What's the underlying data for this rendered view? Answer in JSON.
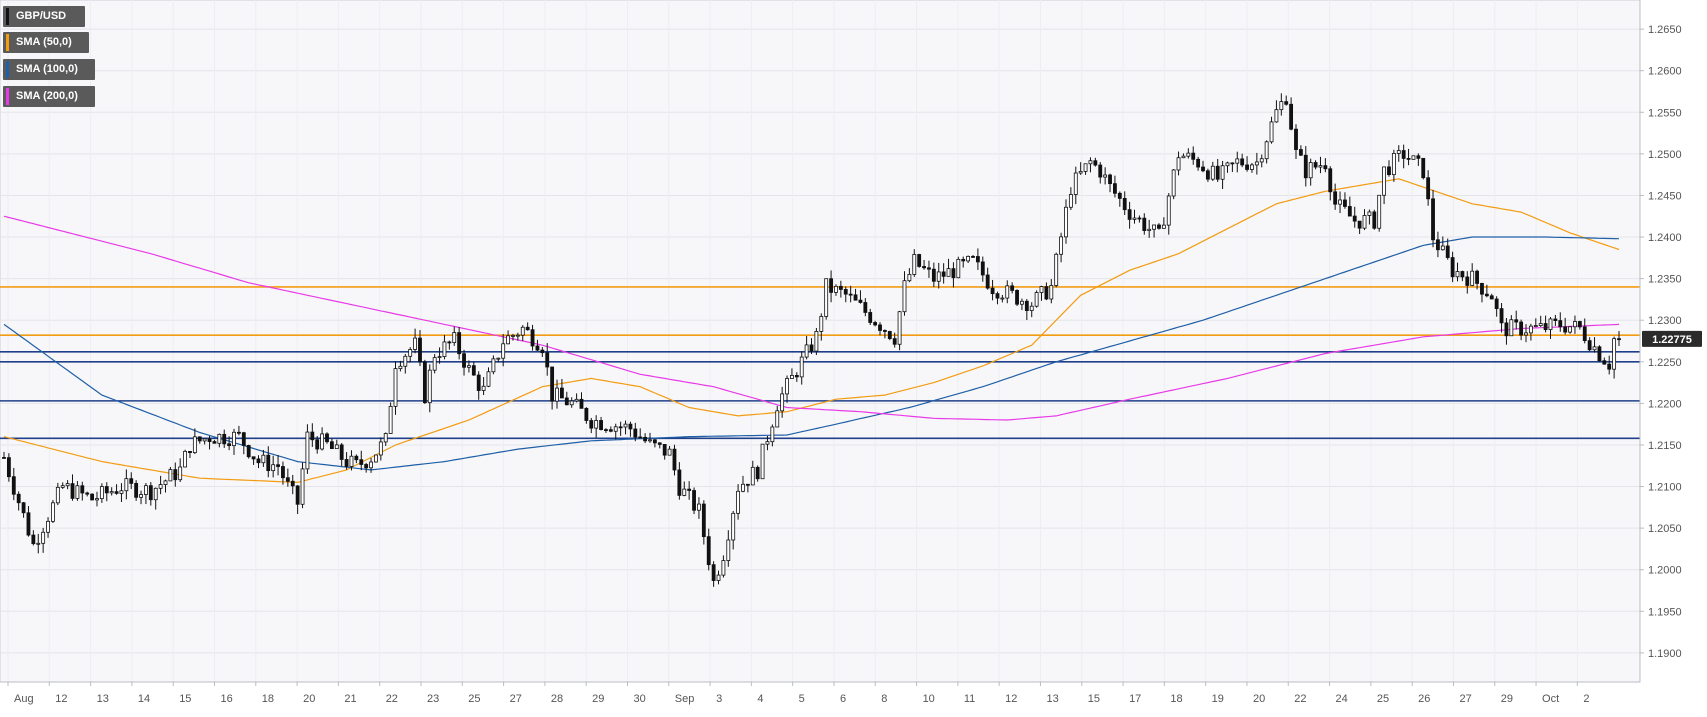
{
  "chart_data": {
    "type": "candlestick",
    "title": "GBP/USD",
    "y_range": [
      1.1865,
      1.2685
    ],
    "y_ticks": [
      "1.1900",
      "1.1950",
      "1.2000",
      "1.2050",
      "1.2100",
      "1.2150",
      "1.2200",
      "1.2250",
      "1.2300",
      "1.2350",
      "1.2400",
      "1.2450",
      "1.2500",
      "1.2550",
      "1.2600",
      "1.2650"
    ],
    "x_tick_labels": [
      "Aug",
      "12",
      "13",
      "14",
      "15",
      "16",
      "18",
      "20",
      "21",
      "22",
      "23",
      "25",
      "27",
      "28",
      "29",
      "30",
      "Sep",
      "3",
      "4",
      "5",
      "6",
      "8",
      "10",
      "11",
      "12",
      "13",
      "15",
      "17",
      "18",
      "19",
      "20",
      "22",
      "24",
      "25",
      "26",
      "27",
      "29",
      "Oct",
      "2"
    ],
    "grid": true,
    "last_price_label": "1.22775",
    "legend": [
      {
        "label": "GBP/USD",
        "color": "#111111"
      },
      {
        "label": "SMA (50,0)",
        "color": "#f39c12"
      },
      {
        "label": "SMA (100,0)",
        "color": "#1f5fa8"
      },
      {
        "label": "SMA (200,0)",
        "color": "#e83be8"
      }
    ],
    "horizontal_levels": [
      {
        "value": 1.234,
        "color": "#f39c12"
      },
      {
        "value": 1.2282,
        "color": "#f39c12"
      },
      {
        "value": 1.2262,
        "color": "#1f3f8a"
      },
      {
        "value": 1.225,
        "color": "#1f3f8a"
      },
      {
        "value": 1.2203,
        "color": "#1f3f8a"
      },
      {
        "value": 1.2158,
        "color": "#1f3f8a"
      }
    ],
    "price_path": [
      [
        0,
        1.2135
      ],
      [
        6,
        1.203
      ],
      [
        12,
        1.21
      ],
      [
        18,
        1.2085
      ],
      [
        24,
        1.21
      ],
      [
        30,
        1.2095
      ],
      [
        36,
        1.212
      ],
      [
        38,
        1.215
      ],
      [
        42,
        1.216
      ],
      [
        48,
        1.216
      ],
      [
        52,
        1.213
      ],
      [
        56,
        1.2125
      ],
      [
        58,
        1.21
      ],
      [
        60,
        1.208
      ],
      [
        62,
        1.216
      ],
      [
        66,
        1.215
      ],
      [
        70,
        1.213
      ],
      [
        72,
        1.2125
      ],
      [
        75,
        1.2135
      ],
      [
        78,
        1.2155
      ],
      [
        80,
        1.225
      ],
      [
        84,
        1.227
      ],
      [
        86,
        1.221
      ],
      [
        88,
        1.226
      ],
      [
        92,
        1.2275
      ],
      [
        95,
        1.224
      ],
      [
        98,
        1.2215
      ],
      [
        102,
        1.2275
      ],
      [
        106,
        1.229
      ],
      [
        110,
        1.227
      ],
      [
        112,
        1.221
      ],
      [
        116,
        1.22
      ],
      [
        120,
        1.218
      ],
      [
        124,
        1.2175
      ],
      [
        128,
        1.217
      ],
      [
        132,
        1.215
      ],
      [
        136,
        1.214
      ],
      [
        138,
        1.21
      ],
      [
        142,
        1.207
      ],
      [
        145,
        1.1985
      ],
      [
        147,
        1.202
      ],
      [
        150,
        1.21
      ],
      [
        154,
        1.212
      ],
      [
        158,
        1.22
      ],
      [
        162,
        1.224
      ],
      [
        166,
        1.228
      ],
      [
        168,
        1.234
      ],
      [
        172,
        1.233
      ],
      [
        176,
        1.231
      ],
      [
        180,
        1.229
      ],
      [
        182,
        1.228
      ],
      [
        184,
        1.234
      ],
      [
        186,
        1.237
      ],
      [
        190,
        1.235
      ],
      [
        194,
        1.236
      ],
      [
        198,
        1.237
      ],
      [
        202,
        1.234
      ],
      [
        206,
        1.233
      ],
      [
        210,
        1.232
      ],
      [
        214,
        1.234
      ],
      [
        216,
        1.24
      ],
      [
        218,
        1.246
      ],
      [
        222,
        1.249
      ],
      [
        224,
        1.248
      ],
      [
        226,
        1.246
      ],
      [
        230,
        1.243
      ],
      [
        234,
        1.241
      ],
      [
        236,
        1.24
      ],
      [
        238,
        1.245
      ],
      [
        240,
        1.25
      ],
      [
        244,
        1.249
      ],
      [
        248,
        1.247
      ],
      [
        252,
        1.249
      ],
      [
        256,
        1.249
      ],
      [
        258,
        1.252
      ],
      [
        260,
        1.255
      ],
      [
        262,
        1.257
      ],
      [
        264,
        1.25
      ],
      [
        266,
        1.248
      ],
      [
        270,
        1.249
      ],
      [
        272,
        1.244
      ],
      [
        276,
        1.242
      ],
      [
        280,
        1.242
      ],
      [
        282,
        1.248
      ],
      [
        286,
        1.25
      ],
      [
        290,
        1.248
      ],
      [
        292,
        1.24
      ],
      [
        296,
        1.236
      ],
      [
        300,
        1.235
      ],
      [
        302,
        1.234
      ],
      [
        304,
        1.233
      ],
      [
        306,
        1.229
      ],
      [
        310,
        1.229
      ],
      [
        314,
        1.229
      ],
      [
        318,
        1.2295
      ],
      [
        322,
        1.229
      ],
      [
        326,
        1.226
      ],
      [
        328,
        1.2248
      ],
      [
        329,
        1.22775
      ]
    ],
    "sma_50": [
      [
        0,
        1.216
      ],
      [
        20,
        1.213
      ],
      [
        40,
        1.211
      ],
      [
        60,
        1.2105
      ],
      [
        70,
        1.212
      ],
      [
        80,
        1.215
      ],
      [
        95,
        1.218
      ],
      [
        110,
        1.222
      ],
      [
        120,
        1.223
      ],
      [
        130,
        1.222
      ],
      [
        140,
        1.2195
      ],
      [
        150,
        1.2185
      ],
      [
        160,
        1.219
      ],
      [
        170,
        1.2205
      ],
      [
        180,
        1.221
      ],
      [
        190,
        1.2225
      ],
      [
        200,
        1.2245
      ],
      [
        210,
        1.227
      ],
      [
        220,
        1.233
      ],
      [
        230,
        1.236
      ],
      [
        240,
        1.238
      ],
      [
        250,
        1.241
      ],
      [
        260,
        1.244
      ],
      [
        270,
        1.2455
      ],
      [
        280,
        1.2465
      ],
      [
        285,
        1.247
      ],
      [
        290,
        1.246
      ],
      [
        300,
        1.244
      ],
      [
        310,
        1.243
      ],
      [
        320,
        1.2405
      ],
      [
        330,
        1.2385
      ]
    ],
    "sma_100": [
      [
        0,
        1.2295
      ],
      [
        20,
        1.221
      ],
      [
        40,
        1.2165
      ],
      [
        60,
        1.213
      ],
      [
        75,
        1.212
      ],
      [
        90,
        1.213
      ],
      [
        105,
        1.2145
      ],
      [
        120,
        1.2155
      ],
      [
        140,
        1.216
      ],
      [
        160,
        1.2162
      ],
      [
        170,
        1.2175
      ],
      [
        185,
        1.2195
      ],
      [
        200,
        1.222
      ],
      [
        215,
        1.225
      ],
      [
        230,
        1.2275
      ],
      [
        245,
        1.23
      ],
      [
        260,
        1.233
      ],
      [
        270,
        1.235
      ],
      [
        280,
        1.237
      ],
      [
        290,
        1.239
      ],
      [
        300,
        1.24
      ],
      [
        315,
        1.24
      ],
      [
        330,
        1.2398
      ]
    ],
    "sma_200": [
      [
        0,
        1.2425
      ],
      [
        30,
        1.238
      ],
      [
        50,
        1.2345
      ],
      [
        70,
        1.232
      ],
      [
        90,
        1.2295
      ],
      [
        110,
        1.227
      ],
      [
        130,
        1.2235
      ],
      [
        145,
        1.222
      ],
      [
        160,
        1.2195
      ],
      [
        175,
        1.219
      ],
      [
        190,
        1.2182
      ],
      [
        205,
        1.218
      ],
      [
        215,
        1.2185
      ],
      [
        230,
        1.2205
      ],
      [
        250,
        1.223
      ],
      [
        270,
        1.226
      ],
      [
        290,
        1.228
      ],
      [
        310,
        1.229
      ],
      [
        330,
        1.2295
      ]
    ]
  }
}
